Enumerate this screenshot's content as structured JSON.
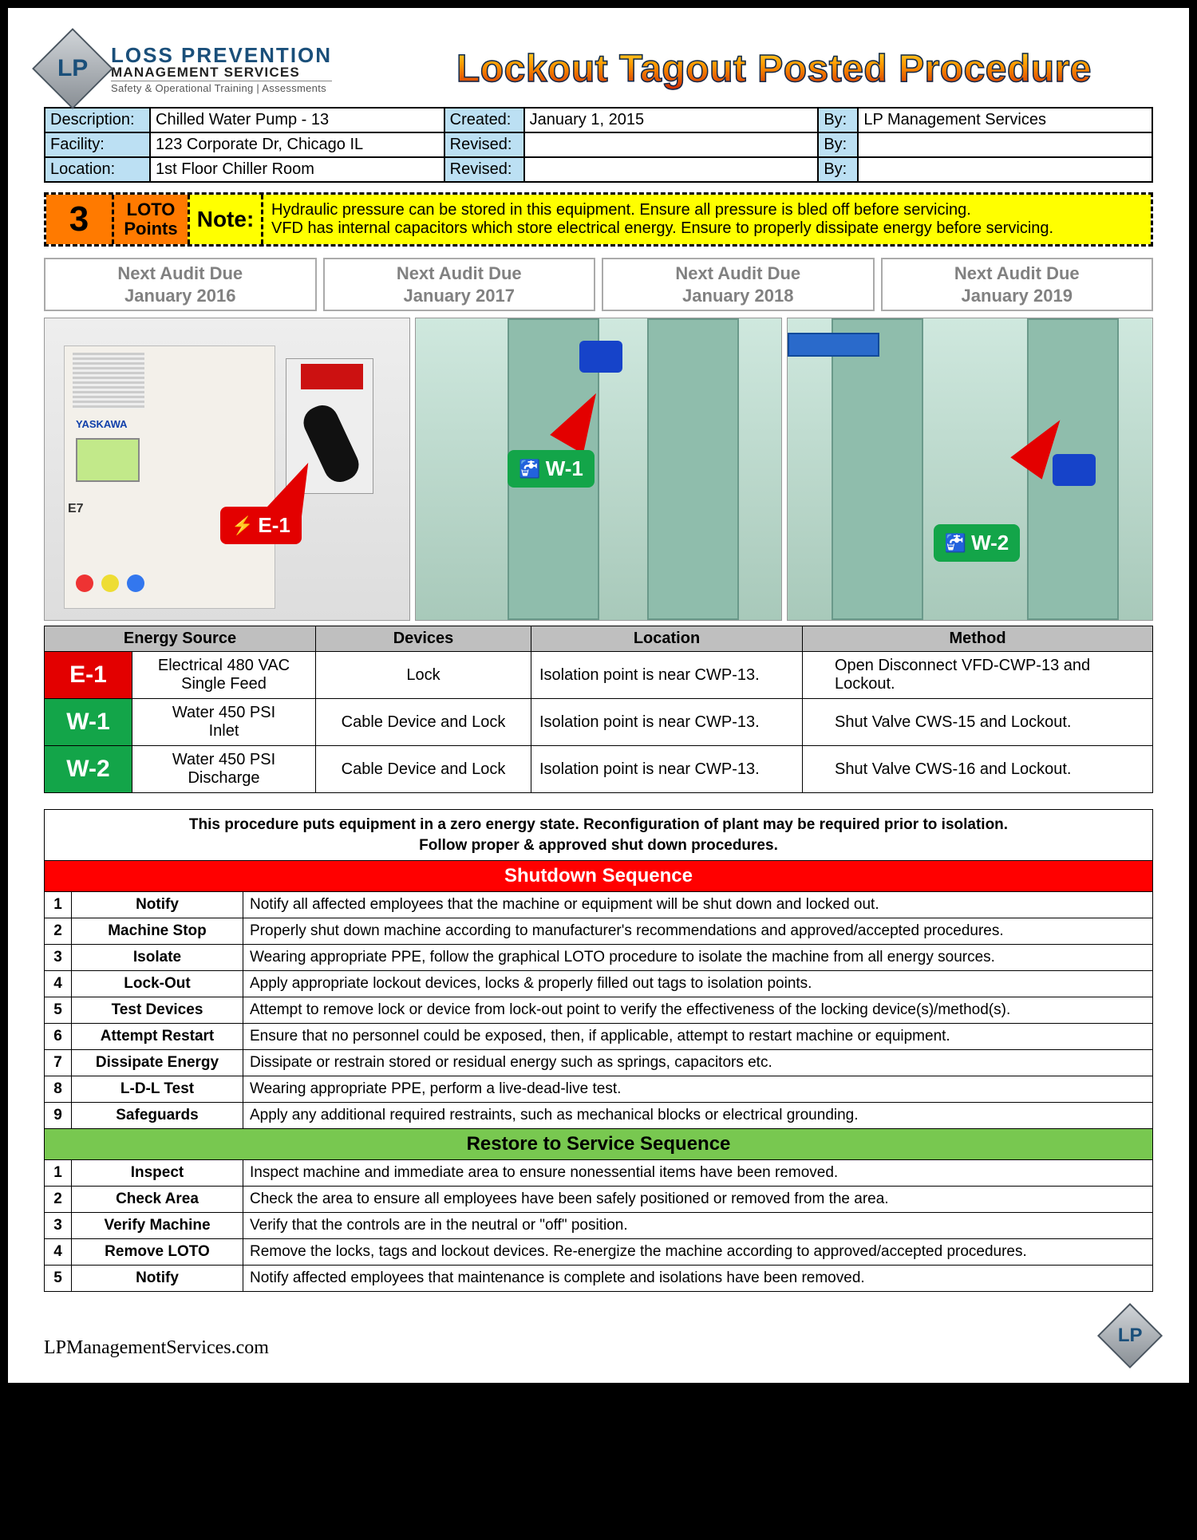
{
  "logo": {
    "line1": "LOSS PREVENTION",
    "line2": "MANAGEMENT SERVICES",
    "line3": "Safety & Operational Training | Assessments",
    "badge": "LP"
  },
  "title": "Lockout Tagout Posted Procedure",
  "info": {
    "description_label": "Description:",
    "description": "Chilled Water Pump - 13",
    "created_label": "Created:",
    "created": "January 1, 2015",
    "by_label": "By:",
    "created_by": "LP Management Services",
    "facility_label": "Facility:",
    "facility": "123 Corporate Dr, Chicago IL",
    "revised_label": "Revised:",
    "revised1": "",
    "revised1_by": "",
    "location_label": "Location:",
    "location": "1st Floor Chiller Room",
    "revised2": "",
    "revised2_by": ""
  },
  "loto": {
    "count": "3",
    "points_label": "LOTO Points",
    "note_label": "Note:",
    "note1": "Hydraulic pressure can be stored in this equipment.  Ensure all pressure is bled off before servicing.",
    "note2": "VFD has internal capacitors which store electrical energy.  Ensure to properly dissipate energy before servicing."
  },
  "audits": [
    {
      "l1": "Next Audit Due",
      "l2": "January 2016"
    },
    {
      "l1": "Next Audit Due",
      "l2": "January 2017"
    },
    {
      "l1": "Next Audit Due",
      "l2": "January 2018"
    },
    {
      "l1": "Next Audit Due",
      "l2": "January 2019"
    }
  ],
  "photo_labels": {
    "e1": "E-1",
    "w1": "W-1",
    "w2": "W-2",
    "vfd_brand": "YASKAWA",
    "vfd_model": "E7"
  },
  "energy_headers": {
    "source": "Energy Source",
    "devices": "Devices",
    "location": "Location",
    "method": "Method"
  },
  "energy_rows": [
    {
      "id": "E-1",
      "cls": "e",
      "source": "Electrical 480 VAC\nSingle Feed",
      "devices": "Lock",
      "location": "Isolation point is near CWP-13.",
      "method": "Open Disconnect VFD-CWP-13 and Lockout."
    },
    {
      "id": "W-1",
      "cls": "w",
      "source": "Water 450 PSI\nInlet",
      "devices": "Cable Device and Lock",
      "location": "Isolation point is near CWP-13.",
      "method": "Shut Valve CWS-15 and Lockout."
    },
    {
      "id": "W-2",
      "cls": "w",
      "source": "Water 450 PSI\nDischarge",
      "devices": "Cable Device and Lock",
      "location": "Isolation point is near CWP-13.",
      "method": "Shut Valve CWS-16 and Lockout."
    }
  ],
  "seq_intro1": "This procedure puts equipment in a zero energy state.  Reconfiguration of plant may be required prior to isolation.",
  "seq_intro2": "Follow proper & approved shut down procedures.",
  "shutdown_title": "Shutdown Sequence",
  "shutdown": [
    {
      "n": "1",
      "step": "Notify",
      "desc": "Notify all affected employees that the machine or equipment will be shut down and locked out."
    },
    {
      "n": "2",
      "step": "Machine Stop",
      "desc": "Properly shut down machine according to manufacturer's recommendations and approved/accepted procedures."
    },
    {
      "n": "3",
      "step": "Isolate",
      "desc": "Wearing appropriate PPE, follow the graphical LOTO procedure to isolate the machine from all energy sources."
    },
    {
      "n": "4",
      "step": "Lock-Out",
      "desc": "Apply appropriate lockout devices, locks & properly filled out tags to isolation points."
    },
    {
      "n": "5",
      "step": "Test Devices",
      "desc": "Attempt to remove lock or device from lock-out point to verify the effectiveness of the locking device(s)/method(s)."
    },
    {
      "n": "6",
      "step": "Attempt Restart",
      "desc": "Ensure that no personnel could be exposed, then, if applicable, attempt to restart machine or equipment."
    },
    {
      "n": "7",
      "step": "Dissipate Energy",
      "desc": "Dissipate or restrain stored or residual energy such as springs, capacitors etc."
    },
    {
      "n": "8",
      "step": "L-D-L Test",
      "desc": "Wearing appropriate PPE, perform a live-dead-live test."
    },
    {
      "n": "9",
      "step": "Safeguards",
      "desc": "Apply any additional required restraints, such as mechanical blocks or electrical grounding."
    }
  ],
  "restore_title": "Restore to Service Sequence",
  "restore": [
    {
      "n": "1",
      "step": "Inspect",
      "desc": "Inspect machine and immediate area to ensure nonessential items have been removed."
    },
    {
      "n": "2",
      "step": "Check Area",
      "desc": "Check the area to ensure all employees have been safely positioned or removed from the area."
    },
    {
      "n": "3",
      "step": "Verify Machine",
      "desc": "Verify that the controls are in the neutral or \"off\" position."
    },
    {
      "n": "4",
      "step": "Remove LOTO",
      "desc": "Remove the locks, tags and lockout devices. Re-energize the machine according to approved/accepted procedures."
    },
    {
      "n": "5",
      "step": "Notify",
      "desc": "Notify affected employees that maintenance is complete and isolations have been removed."
    }
  ],
  "footer_url": "LPManagementServices.com",
  "colors": {
    "header_blue": "#bce0f3",
    "note_orange": "#ff7a00",
    "note_yellow": "#ffff00",
    "tag_red": "#e30000",
    "tag_green": "#13a549",
    "seq_red": "#ff0000",
    "seq_green": "#78c850",
    "gray_header": "#bfbfbf"
  }
}
